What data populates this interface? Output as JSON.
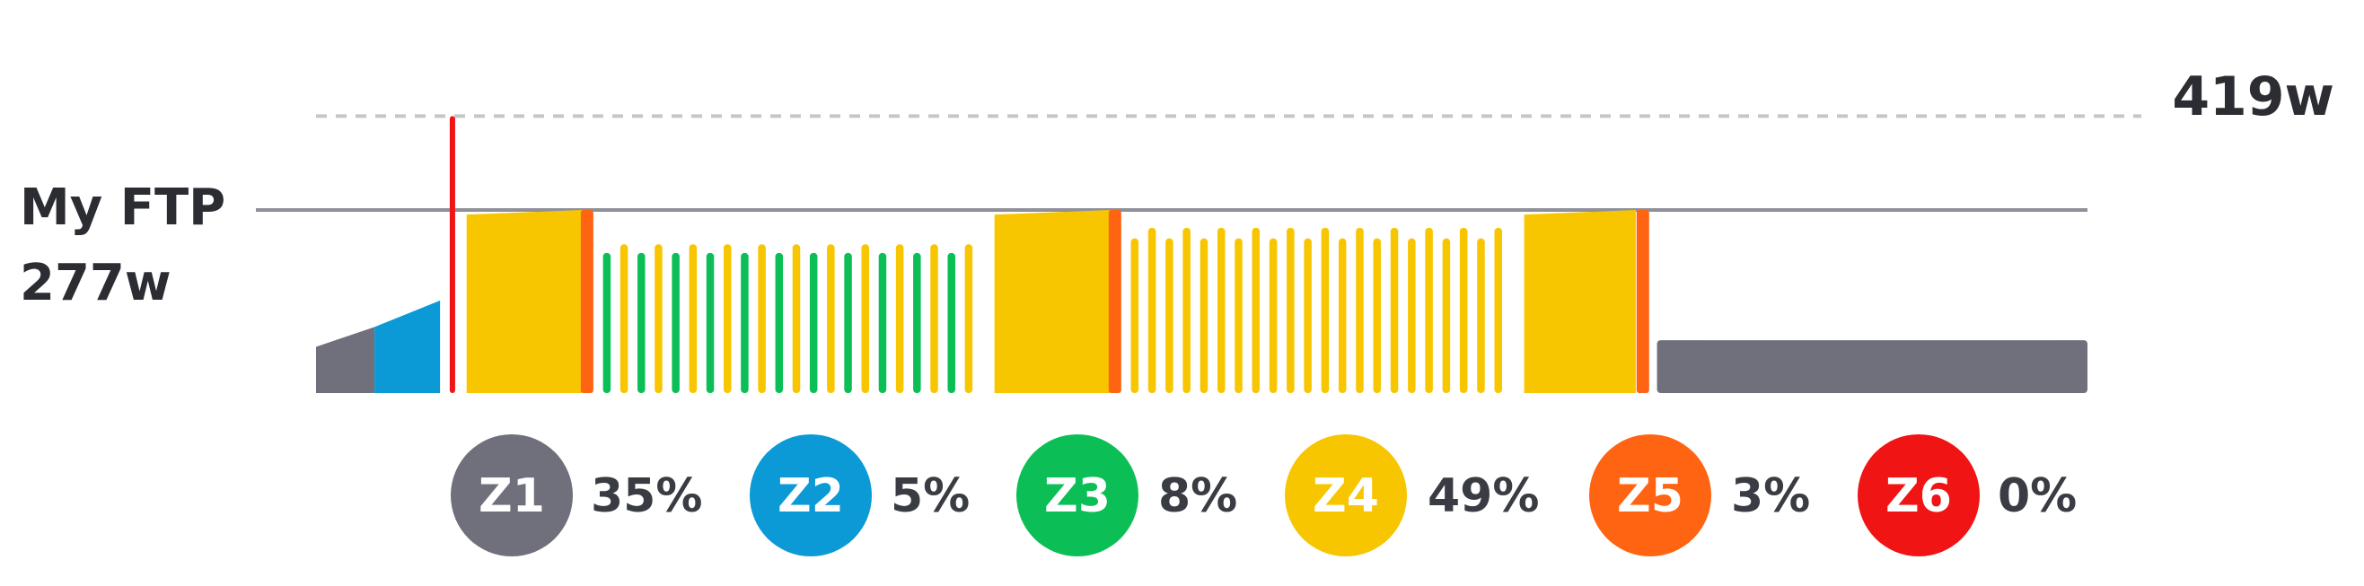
{
  "ftp": {
    "title": "My FTP",
    "value_label": "277w",
    "watts": 277
  },
  "max_power": {
    "value_label": "419w",
    "watts": 419
  },
  "zones": [
    {
      "label": "Z1",
      "percent": "35%",
      "color": "#6f707b"
    },
    {
      "label": "Z2",
      "percent": "5%",
      "color": "#0b9ad6"
    },
    {
      "label": "Z3",
      "percent": "8%",
      "color": "#0bbf56"
    },
    {
      "label": "Z4",
      "percent": "49%",
      "color": "#f7c600"
    },
    {
      "label": "Z5",
      "percent": "3%",
      "color": "#ff6412"
    },
    {
      "label": "Z6",
      "percent": "0%",
      "color": "#f01414"
    }
  ],
  "chart_data": {
    "type": "bar",
    "xlabel": "",
    "ylabel": "",
    "ylim": [
      0,
      419
    ],
    "reference_lines": [
      {
        "value": 277,
        "label": "My FTP 277w",
        "style": "solid"
      },
      {
        "value": 419,
        "label": "419w",
        "style": "dashed"
      }
    ],
    "segments": [
      {
        "kind": "ramp",
        "zone": "Z1",
        "start": 0.0,
        "end": 0.033,
        "from_w": 70,
        "to_w": 100
      },
      {
        "kind": "ramp",
        "zone": "Z2",
        "start": 0.033,
        "end": 0.07,
        "from_w": 100,
        "to_w": 140
      },
      {
        "kind": "spike",
        "zone": "Z6",
        "at": 0.077,
        "watts": 419
      },
      {
        "kind": "ramp",
        "zone": "Z4",
        "start": 0.085,
        "end": 0.15,
        "from_w": 270,
        "to_w": 277
      },
      {
        "kind": "spike",
        "zone": "Z5",
        "at": 0.153,
        "watts": 277
      },
      {
        "kind": "intervals",
        "zones": [
          "Z3",
          "Z4"
        ],
        "watts": [
          212,
          225
        ],
        "start": 0.162,
        "end": 0.376,
        "count": 22
      },
      {
        "kind": "ramp",
        "zone": "Z4",
        "start": 0.383,
        "end": 0.448,
        "from_w": 270,
        "to_w": 277
      },
      {
        "kind": "spike",
        "zone": "Z5",
        "at": 0.451,
        "watts": 277
      },
      {
        "kind": "intervals",
        "zones": [
          "Z4",
          "Z4"
        ],
        "watts": [
          234,
          250
        ],
        "start": 0.46,
        "end": 0.675,
        "count": 22
      },
      {
        "kind": "ramp",
        "zone": "Z4",
        "start": 0.682,
        "end": 0.745,
        "from_w": 270,
        "to_w": 277
      },
      {
        "kind": "spike",
        "zone": "Z5",
        "at": 0.749,
        "watts": 277
      },
      {
        "kind": "flat",
        "zone": "Z1",
        "start": 0.757,
        "end": 1.0,
        "watts": 80
      }
    ]
  }
}
